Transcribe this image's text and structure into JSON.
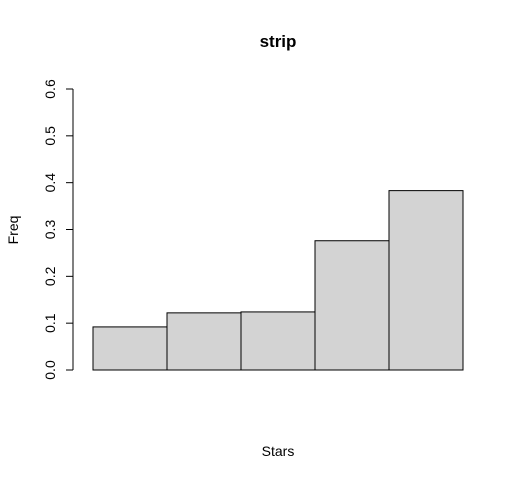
{
  "chart_data": {
    "type": "bar",
    "title": "strip",
    "xlabel": "Stars",
    "ylabel": "Freq",
    "categories": [
      "",
      "",
      "",
      "",
      ""
    ],
    "values": [
      0.092,
      0.122,
      0.124,
      0.276,
      0.383
    ],
    "ylim": [
      0,
      0.6
    ],
    "yticks": [
      0.0,
      0.1,
      0.2,
      0.3,
      0.4,
      0.5,
      0.6
    ],
    "ytick_labels": [
      "0.0",
      "0.1",
      "0.2",
      "0.3",
      "0.4",
      "0.5",
      "0.6"
    ],
    "bar_color": "#d3d3d3",
    "edge_color": "#000000",
    "grid": false,
    "legend": false
  }
}
